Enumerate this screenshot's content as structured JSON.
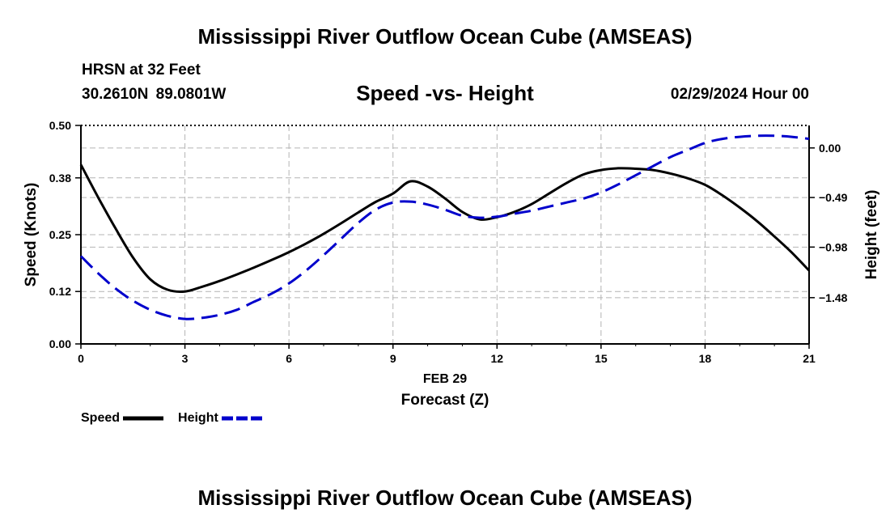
{
  "header": {
    "title_top": "Mississippi River Outflow Ocean Cube (AMSEAS)",
    "station": "HRSN at 32 Feet",
    "coords": "30.2610N  89.0801W",
    "subtitle": "Speed -vs- Height",
    "datetime": "02/29/2024 Hour 00",
    "title_bottom": "Mississippi River Outflow Ocean Cube (AMSEAS)"
  },
  "legend": {
    "speed_label": "Speed",
    "height_label": "Height"
  },
  "colors": {
    "speed": "#000000",
    "height": "#0000cc",
    "grid": "#b4b4b4"
  },
  "chart_data": {
    "type": "line",
    "xlabel_date": "FEB 29",
    "xlabel": "Forecast (Z)",
    "ylabel_left": "Speed (Knots)",
    "ylabel_right": "Height (feet)",
    "xlim": [
      0,
      21
    ],
    "ylim_left": [
      0,
      0.5
    ],
    "ylim_right": [
      -1.9375,
      0.2225
    ],
    "x_ticks": [
      "0",
      "3",
      "6",
      "9",
      "12",
      "15",
      "18",
      "21"
    ],
    "y_ticks_left": [
      "0.00",
      "0.12",
      "0.25",
      "0.38",
      "0.50"
    ],
    "y_ticks_right": [
      "0.00",
      "−0.49",
      "−0.98",
      "−1.48"
    ],
    "series": [
      {
        "name": "Speed",
        "axis": "left",
        "style": "solid",
        "x": [
          0,
          0.5,
          1,
          1.5,
          2,
          2.5,
          3,
          3.5,
          4,
          4.5,
          5,
          5.5,
          6,
          6.5,
          7,
          7.5,
          8,
          8.5,
          9,
          9.5,
          10,
          10.5,
          11,
          11.5,
          12,
          12.5,
          13,
          13.5,
          14,
          14.5,
          15,
          15.5,
          16,
          16.5,
          17,
          17.5,
          18,
          18.5,
          19,
          19.5,
          20,
          20.5,
          21
        ],
        "values": [
          0.41,
          0.335,
          0.264,
          0.198,
          0.148,
          0.124,
          0.12,
          0.131,
          0.144,
          0.159,
          0.175,
          0.192,
          0.21,
          0.23,
          0.252,
          0.276,
          0.301,
          0.325,
          0.344,
          0.372,
          0.36,
          0.333,
          0.302,
          0.285,
          0.29,
          0.302,
          0.32,
          0.344,
          0.368,
          0.388,
          0.398,
          0.402,
          0.401,
          0.398,
          0.39,
          0.379,
          0.364,
          0.34,
          0.312,
          0.281,
          0.246,
          0.209,
          0.168
        ]
      },
      {
        "name": "Height",
        "axis": "right",
        "style": "dashed",
        "x": [
          0,
          0.5,
          1,
          1.5,
          2,
          2.5,
          3,
          3.5,
          4,
          4.5,
          5,
          5.5,
          6,
          6.5,
          7,
          7.5,
          8,
          8.5,
          9,
          9.5,
          10,
          10.5,
          11,
          11.5,
          12,
          12.5,
          13,
          13.5,
          14,
          14.5,
          15,
          15.5,
          16,
          16.5,
          17,
          17.5,
          18,
          18.5,
          19,
          19.5,
          20,
          20.5,
          21
        ],
        "values": [
          -1.07,
          -1.24,
          -1.39,
          -1.51,
          -1.6,
          -1.66,
          -1.69,
          -1.68,
          -1.65,
          -1.6,
          -1.52,
          -1.44,
          -1.34,
          -1.21,
          -1.06,
          -0.9,
          -0.74,
          -0.61,
          -0.54,
          -0.53,
          -0.56,
          -0.61,
          -0.67,
          -0.69,
          -0.68,
          -0.65,
          -0.62,
          -0.58,
          -0.54,
          -0.5,
          -0.44,
          -0.36,
          -0.27,
          -0.18,
          -0.09,
          -0.02,
          0.05,
          0.09,
          0.11,
          0.12,
          0.12,
          0.11,
          0.09
        ]
      }
    ]
  }
}
